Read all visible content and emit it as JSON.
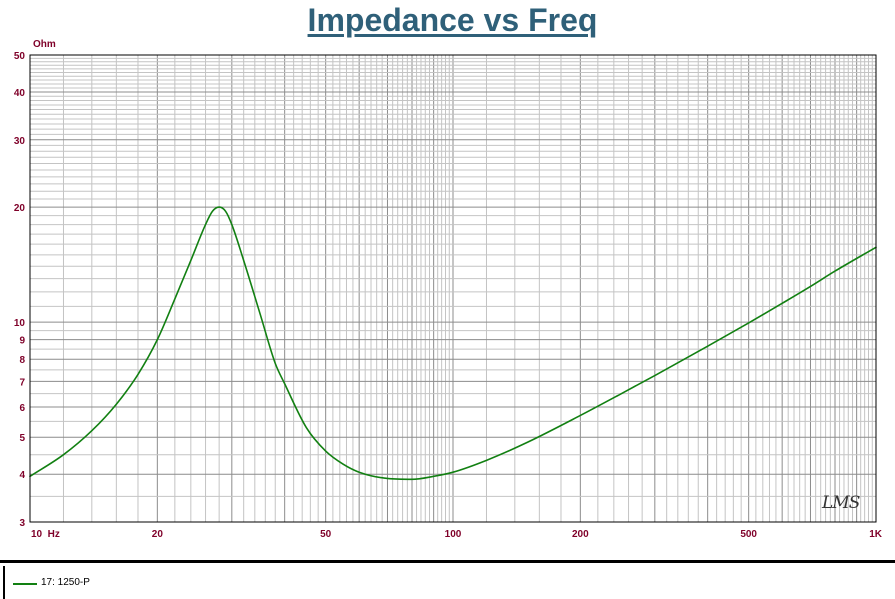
{
  "chart_data": {
    "type": "line",
    "title": "Impedance vs Freq",
    "ylabel": "Ohm",
    "xlabel": "",
    "x_scale": "log",
    "y_scale": "log",
    "xlim": [
      10,
      1000
    ],
    "ylim": [
      3,
      50
    ],
    "x_ticks": [
      {
        "value": 10,
        "label": "10  Hz"
      },
      {
        "value": 20,
        "label": "20"
      },
      {
        "value": 50,
        "label": "50"
      },
      {
        "value": 100,
        "label": "100"
      },
      {
        "value": 200,
        "label": "200"
      },
      {
        "value": 500,
        "label": "500"
      },
      {
        "value": 1000,
        "label": "1K"
      }
    ],
    "y_ticks": [
      {
        "value": 3,
        "label": "3"
      },
      {
        "value": 4,
        "label": "4"
      },
      {
        "value": 5,
        "label": "5"
      },
      {
        "value": 6,
        "label": "6"
      },
      {
        "value": 7,
        "label": "7"
      },
      {
        "value": 8,
        "label": "8"
      },
      {
        "value": 9,
        "label": "9"
      },
      {
        "value": 10,
        "label": "10"
      },
      {
        "value": 20,
        "label": "20"
      },
      {
        "value": 30,
        "label": "30"
      },
      {
        "value": 40,
        "label": "40"
      },
      {
        "value": 50,
        "label": "50"
      }
    ],
    "grid": true,
    "legend_position": "bottom-left",
    "series": [
      {
        "name": "17: 1250-P",
        "color": "#128012",
        "x": [
          10,
          12,
          14,
          16,
          18,
          20,
          22,
          24,
          26,
          27,
          28,
          29,
          30,
          32,
          35,
          38,
          40,
          45,
          50,
          55,
          60,
          70,
          80,
          90,
          100,
          120,
          150,
          200,
          250,
          300,
          400,
          500,
          600,
          700,
          800,
          1000
        ],
        "y": [
          3.95,
          4.5,
          5.2,
          6.1,
          7.3,
          9.0,
          11.5,
          14.5,
          18.0,
          19.5,
          20.0,
          19.5,
          18.0,
          14.5,
          10.5,
          7.8,
          6.9,
          5.3,
          4.6,
          4.25,
          4.05,
          3.9,
          3.88,
          3.95,
          4.05,
          4.35,
          4.85,
          5.7,
          6.5,
          7.25,
          8.65,
          9.95,
          11.2,
          12.4,
          13.6,
          15.7
        ]
      }
    ]
  },
  "watermark": "LMS",
  "colors": {
    "title": "#2f6079",
    "tick_labels": "#7f0029",
    "grid": "#a0a0a0",
    "curve": "#128012"
  }
}
